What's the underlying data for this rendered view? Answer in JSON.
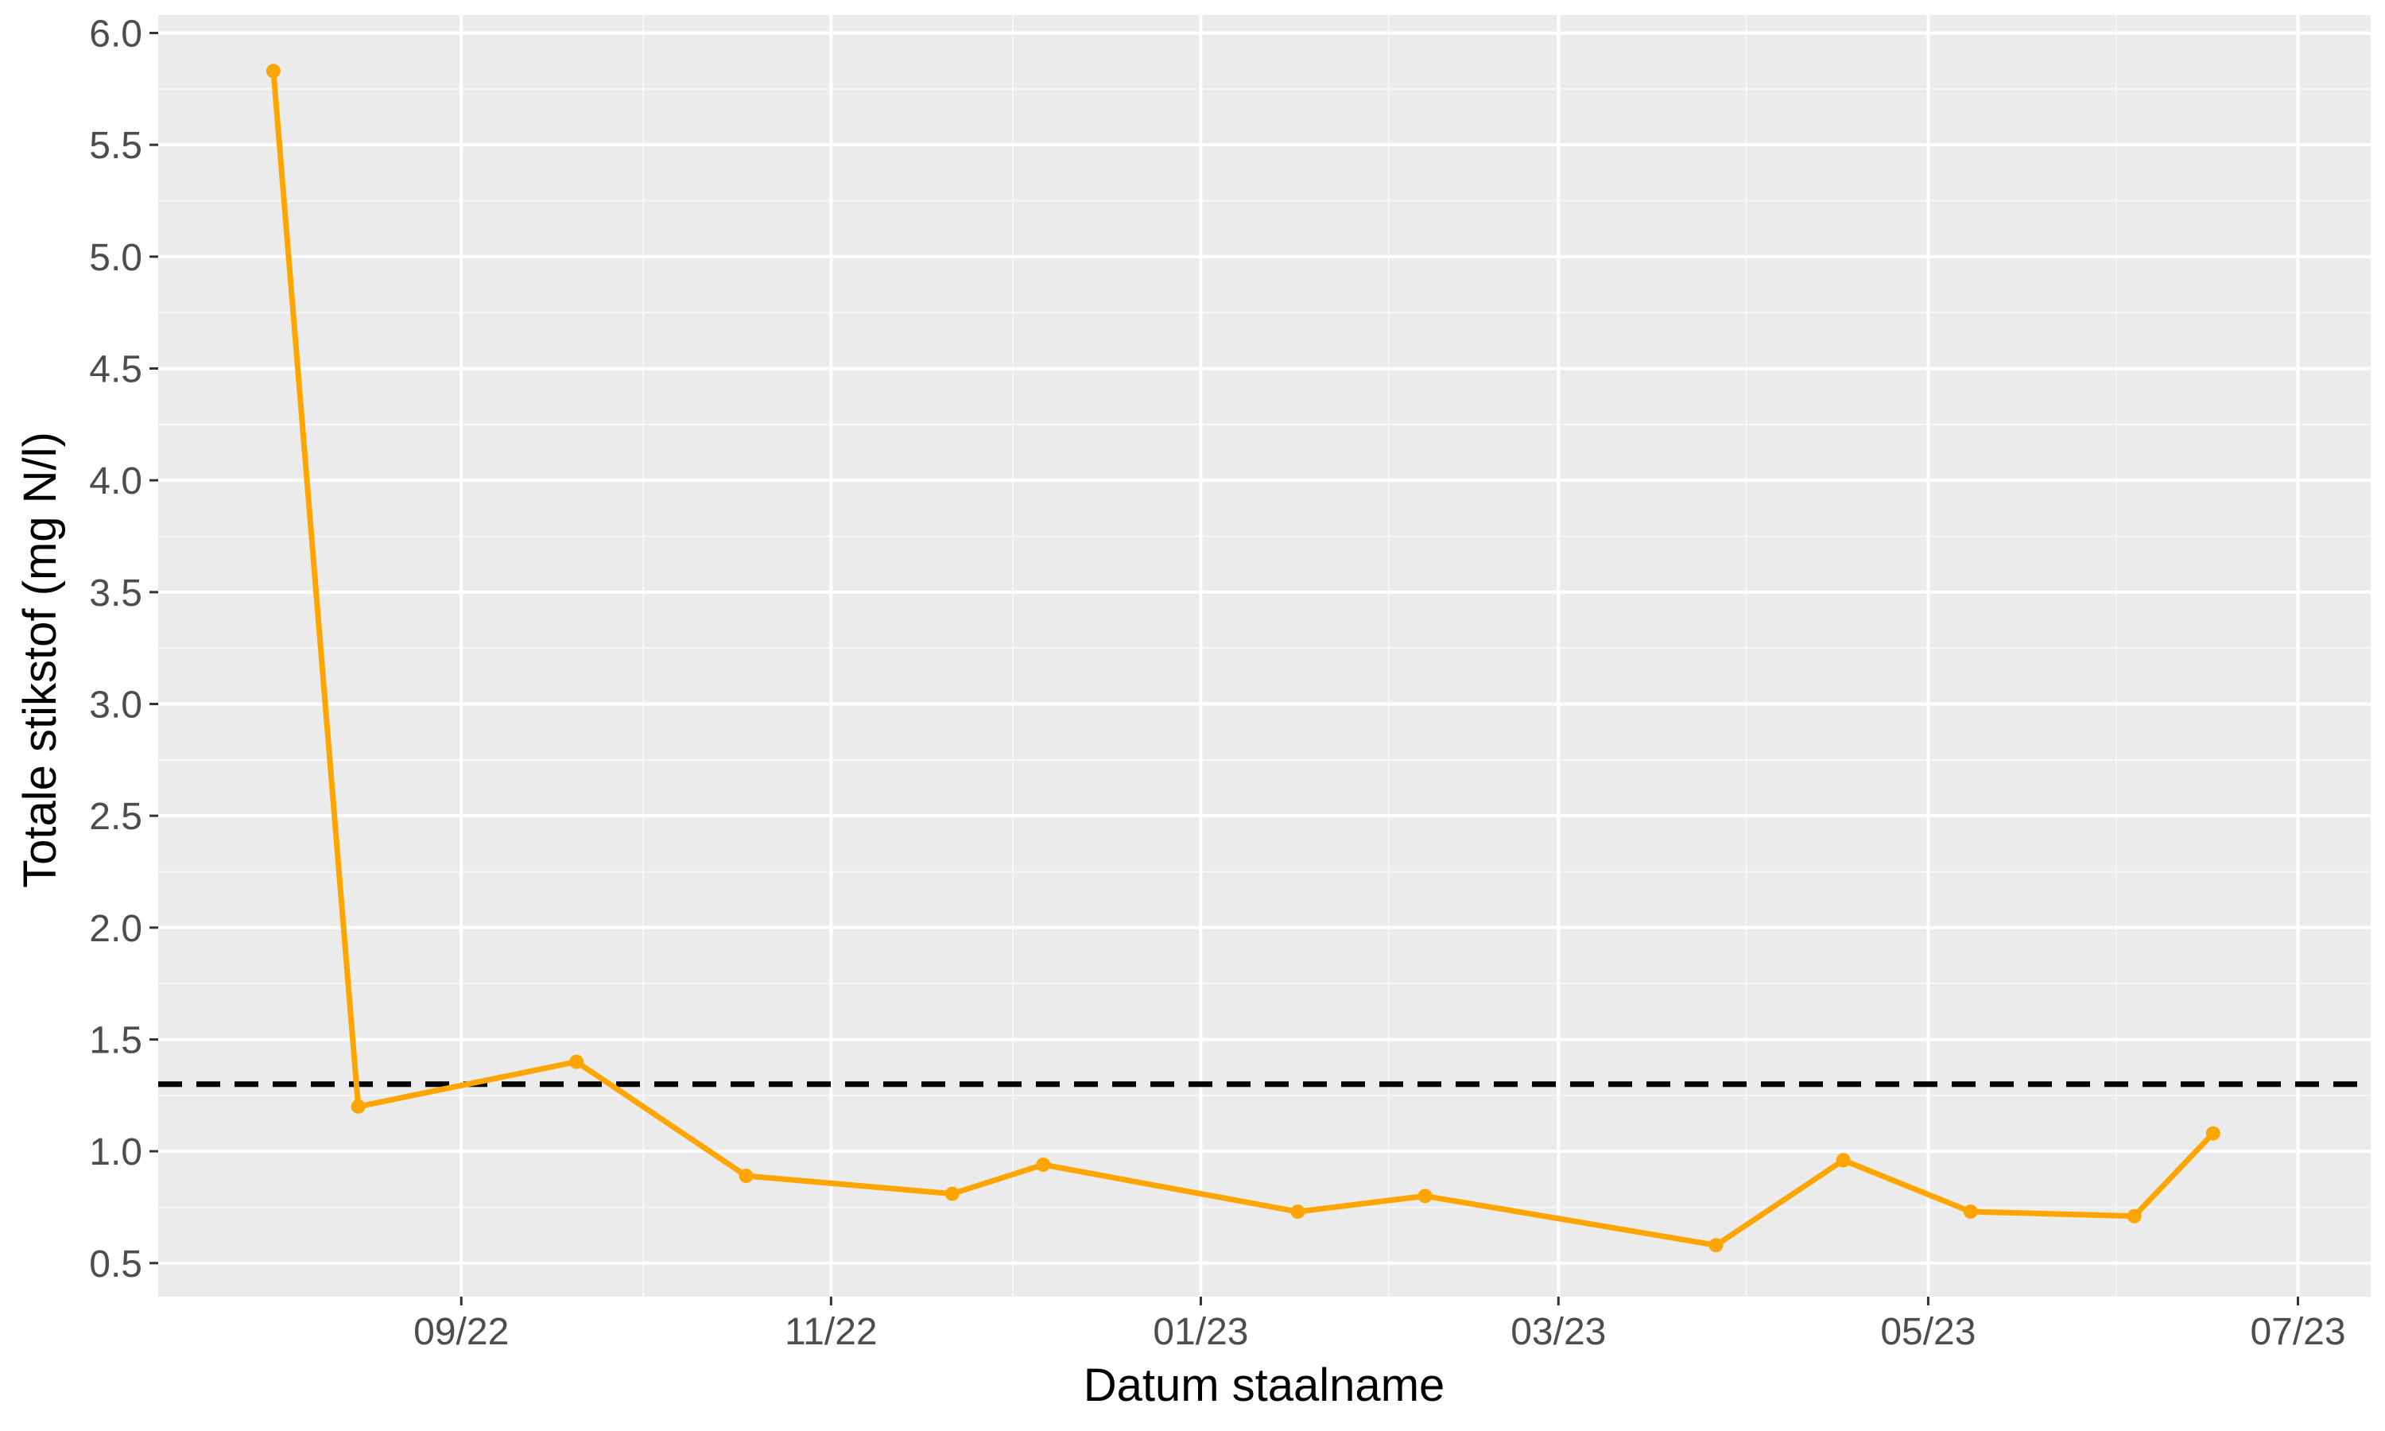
{
  "chart_data": {
    "type": "line",
    "title": "",
    "xlabel": "Datum staalname",
    "ylabel": "Totale stikstof (mg N/l)",
    "x_type": "date",
    "xlim": [
      "2022-07-13",
      "2023-07-13"
    ],
    "ylim": [
      0.35,
      6.08
    ],
    "x_ticks": [
      {
        "date": "2022-09-01",
        "label": "09/22"
      },
      {
        "date": "2022-11-01",
        "label": "11/22"
      },
      {
        "date": "2023-01-01",
        "label": "01/23"
      },
      {
        "date": "2023-03-01",
        "label": "03/23"
      },
      {
        "date": "2023-05-01",
        "label": "05/23"
      },
      {
        "date": "2023-07-01",
        "label": "07/23"
      }
    ],
    "x_minor_ticks": [
      "2022-10-01",
      "2022-12-01",
      "2023-02-01",
      "2023-04-01",
      "2023-06-01"
    ],
    "y_ticks": [
      {
        "value": 0.5,
        "label": "0.5"
      },
      {
        "value": 1.0,
        "label": "1.0"
      },
      {
        "value": 1.5,
        "label": "1.5"
      },
      {
        "value": 2.0,
        "label": "2.0"
      },
      {
        "value": 2.5,
        "label": "2.5"
      },
      {
        "value": 3.0,
        "label": "3.0"
      },
      {
        "value": 3.5,
        "label": "3.5"
      },
      {
        "value": 4.0,
        "label": "4.0"
      },
      {
        "value": 4.5,
        "label": "4.5"
      },
      {
        "value": 5.0,
        "label": "5.0"
      },
      {
        "value": 5.5,
        "label": "5.5"
      },
      {
        "value": 6.0,
        "label": "6.0"
      }
    ],
    "y_minor_ticks": [
      0.75,
      1.25,
      1.75,
      2.25,
      2.75,
      3.25,
      3.75,
      4.25,
      4.75,
      5.25,
      5.75
    ],
    "grid": true,
    "series": [
      {
        "color": "#FFA500",
        "points": [
          {
            "x": "2022-08-01",
            "y": 5.83
          },
          {
            "x": "2022-08-15",
            "y": 1.2
          },
          {
            "x": "2022-09-20",
            "y": 1.4
          },
          {
            "x": "2022-10-18",
            "y": 0.89
          },
          {
            "x": "2022-11-21",
            "y": 0.81
          },
          {
            "x": "2022-12-06",
            "y": 0.94
          },
          {
            "x": "2023-01-17",
            "y": 0.73
          },
          {
            "x": "2023-02-07",
            "y": 0.8
          },
          {
            "x": "2023-03-27",
            "y": 0.58
          },
          {
            "x": "2023-04-17",
            "y": 0.96
          },
          {
            "x": "2023-05-08",
            "y": 0.73
          },
          {
            "x": "2023-06-04",
            "y": 0.71
          },
          {
            "x": "2023-06-17",
            "y": 1.08
          }
        ]
      }
    ],
    "reference_line": {
      "y": 1.3,
      "style": "dashed",
      "color": "#000000"
    },
    "colors": {
      "panel_background": "#EBEBEB",
      "grid_major": "#FFFFFF",
      "grid_minor": "#F7F7F7",
      "tick_mark": "#333333"
    }
  }
}
